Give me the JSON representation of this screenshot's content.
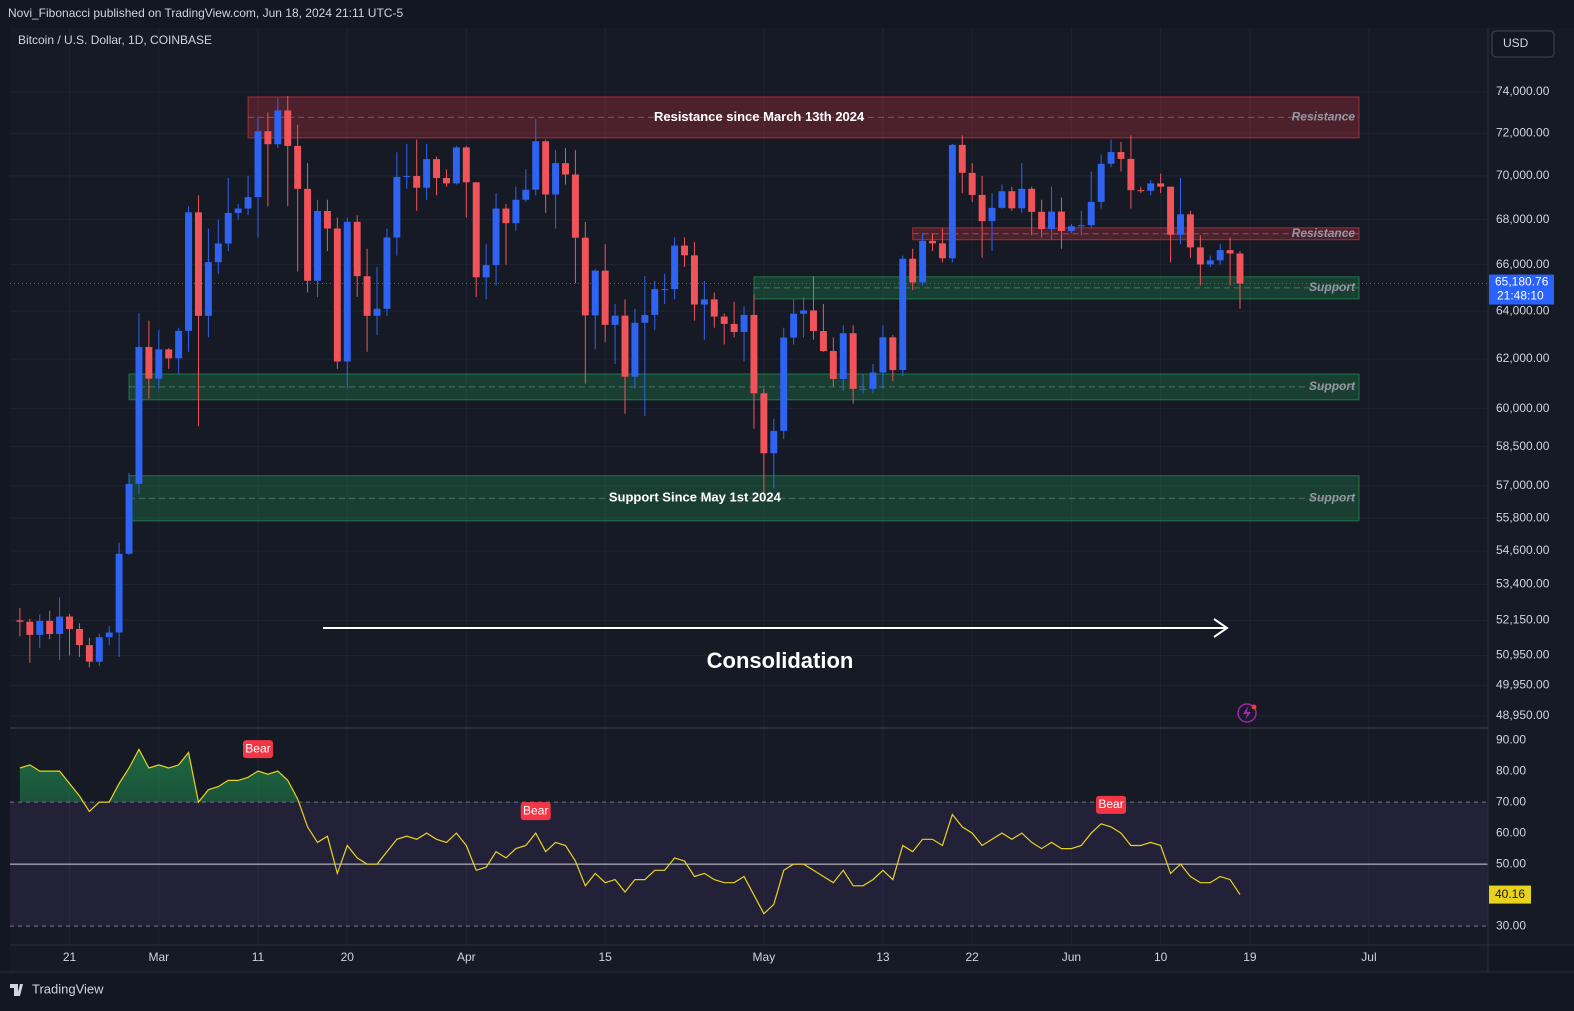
{
  "header": "Novi_Fibonacci published on TradingView.com, Jun 18, 2024 21:11 UTC-5",
  "footer": "TradingView",
  "chart_data": [
    {
      "type": "candlestick",
      "title": "Bitcoin / U.S. Dollar, 1D, COINBASE",
      "currency": "USD",
      "annotation": "Consolidation",
      "x": [
        "02-16",
        "02-17",
        "02-18",
        "02-19",
        "02-20",
        "02-21",
        "02-22",
        "02-23",
        "02-24",
        "02-25",
        "02-26",
        "02-27",
        "02-28",
        "02-29",
        "03-01",
        "03-02",
        "03-03",
        "03-04",
        "03-05",
        "03-06",
        "03-07",
        "03-08",
        "03-09",
        "03-10",
        "03-11",
        "03-12",
        "03-13",
        "03-14",
        "03-15",
        "03-16",
        "03-17",
        "03-18",
        "03-19",
        "03-20",
        "03-21",
        "03-22",
        "03-23",
        "03-24",
        "03-25",
        "03-26",
        "03-27",
        "03-28",
        "03-29",
        "03-30",
        "03-31",
        "04-01",
        "04-02",
        "04-03",
        "04-04",
        "04-05",
        "04-06",
        "04-07",
        "04-08",
        "04-09",
        "04-10",
        "04-11",
        "04-12",
        "04-13",
        "04-14",
        "04-15",
        "04-16",
        "04-17",
        "04-18",
        "04-19",
        "04-20",
        "04-21",
        "04-22",
        "04-23",
        "04-24",
        "04-25",
        "04-26",
        "04-27",
        "04-28",
        "04-29",
        "04-30",
        "05-01",
        "05-02",
        "05-03",
        "05-04",
        "05-05",
        "05-06",
        "05-07",
        "05-08",
        "05-09",
        "05-10",
        "05-11",
        "05-12",
        "05-13",
        "05-14",
        "05-15",
        "05-16",
        "05-17",
        "05-18",
        "05-19",
        "05-20",
        "05-21",
        "05-22",
        "05-23",
        "05-24",
        "05-25",
        "05-26",
        "05-27",
        "05-28",
        "05-29",
        "05-30",
        "05-31",
        "06-01",
        "06-02",
        "06-03",
        "06-04",
        "06-05",
        "06-06",
        "06-07",
        "06-08",
        "06-09",
        "06-10",
        "06-11",
        "06-12",
        "06-13",
        "06-14",
        "06-15",
        "06-16",
        "06-17",
        "06-18"
      ],
      "open": [
        52150,
        52100,
        51650,
        52130,
        51680,
        52280,
        51850,
        51300,
        50740,
        51570,
        51730,
        54500,
        57080,
        62500,
        61200,
        62400,
        62030,
        63170,
        68330,
        63800,
        66110,
        66930,
        68300,
        68500,
        69020,
        72100,
        71480,
        73100,
        71400,
        69400,
        65300,
        68390,
        67600,
        61900,
        67900,
        65500,
        63800,
        64100,
        67200,
        69950,
        69990,
        69450,
        70780,
        69900,
        69650,
        71330,
        69700,
        65450,
        65980,
        68500,
        67840,
        68900,
        69360,
        71620,
        69140,
        70590,
        70060,
        67190,
        63820,
        65740,
        63420,
        63810,
        61280,
        63510,
        63840,
        64940,
        64940,
        66840,
        66410,
        64280,
        64500,
        63770,
        63460,
        63120,
        63840,
        60610,
        58250,
        59120,
        62890,
        63890,
        64030,
        63160,
        62330,
        61190,
        63070,
        60790,
        60790,
        61450,
        62900,
        61550,
        66260,
        65230,
        67050,
        66940,
        66280,
        71450,
        70140,
        69120,
        67930,
        68530,
        69290,
        68510,
        69400,
        68350,
        67580,
        68360,
        67490,
        67700,
        67750,
        68800,
        70560,
        71110,
        70790,
        69340,
        69310,
        69650,
        69500,
        67320,
        68240,
        66760,
        66010,
        66190,
        66640,
        66490
      ],
      "high": [
        52580,
        52200,
        52350,
        52480,
        52950,
        52380,
        52050,
        51550,
        51700,
        51950,
        54900,
        57500,
        63900,
        63600,
        63200,
        62450,
        63300,
        68600,
        69100,
        67600,
        68000,
        69900,
        68700,
        70000,
        72800,
        73000,
        73700,
        73800,
        72400,
        70600,
        68900,
        68900,
        68100,
        68100,
        68200,
        66700,
        65900,
        67600,
        71100,
        71500,
        71700,
        71500,
        70900,
        70300,
        71400,
        71400,
        69700,
        66900,
        69200,
        68700,
        69500,
        70300,
        72700,
        71700,
        71200,
        71300,
        71200,
        67900,
        65800,
        66900,
        64300,
        64500,
        64100,
        65500,
        65300,
        65600,
        67200,
        67200,
        67000,
        65300,
        64800,
        63900,
        64400,
        64200,
        64700,
        60800,
        59600,
        63300,
        64500,
        64600,
        65500,
        64300,
        62900,
        63400,
        63400,
        61400,
        61800,
        63400,
        63000,
        66400,
        66700,
        67400,
        67400,
        67600,
        71500,
        71900,
        70600,
        70000,
        69200,
        69600,
        69500,
        70600,
        69500,
        68900,
        69500,
        69000,
        67800,
        68400,
        70200,
        71000,
        71700,
        71600,
        71900,
        69500,
        69800,
        70100,
        69500,
        69900,
        68400,
        67300,
        66400,
        66900,
        67200,
        66600
      ],
      "low": [
        51600,
        50700,
        51200,
        51500,
        50800,
        50950,
        50900,
        50550,
        50600,
        51300,
        50900,
        54450,
        56700,
        60400,
        60800,
        61600,
        61400,
        62300,
        59300,
        62900,
        65600,
        66600,
        68000,
        68200,
        67200,
        68600,
        71300,
        68600,
        65700,
        64800,
        64600,
        66600,
        61600,
        60800,
        64600,
        62300,
        63000,
        63800,
        66400,
        69400,
        68400,
        68900,
        69100,
        69500,
        69600,
        68100,
        64600,
        64500,
        65100,
        66000,
        67500,
        68800,
        69100,
        68300,
        67600,
        69600,
        65200,
        61000,
        62400,
        62700,
        61800,
        59800,
        60800,
        59700,
        63200,
        64300,
        64500,
        65900,
        63600,
        62800,
        63300,
        62600,
        62900,
        61900,
        59200,
        56600,
        56900,
        58800,
        62600,
        62900,
        62800,
        62300,
        60900,
        60700,
        60200,
        60600,
        60600,
        60800,
        61100,
        61300,
        64900,
        65100,
        66600,
        66100,
        66100,
        69200,
        68800,
        66300,
        66600,
        68500,
        68400,
        68300,
        67300,
        67200,
        67100,
        66700,
        67400,
        67300,
        67600,
        68500,
        70400,
        70200,
        68500,
        69200,
        69100,
        69200,
        66100,
        66900,
        66300,
        65100,
        65900,
        66000,
        65100,
        64100
      ],
      "close": [
        52100,
        51650,
        52130,
        51680,
        52280,
        51850,
        51300,
        50740,
        51570,
        51730,
        54500,
        57080,
        62500,
        61200,
        62400,
        62030,
        63170,
        68330,
        63800,
        66110,
        66930,
        68300,
        68500,
        69020,
        72100,
        71480,
        73100,
        71400,
        69400,
        65300,
        68390,
        67600,
        61900,
        67900,
        65500,
        63800,
        64100,
        67200,
        69950,
        69990,
        69450,
        70780,
        69900,
        69650,
        71330,
        69700,
        65450,
        65980,
        68500,
        67840,
        68900,
        69360,
        71620,
        69140,
        70590,
        70060,
        67190,
        63820,
        65740,
        63420,
        63810,
        61280,
        63510,
        63840,
        64940,
        64940,
        66840,
        66410,
        64280,
        64500,
        63770,
        63460,
        63120,
        63840,
        60610,
        58250,
        59120,
        62890,
        63890,
        64030,
        63160,
        62330,
        61190,
        63070,
        60790,
        60790,
        61450,
        62900,
        61550,
        66260,
        65230,
        67050,
        66940,
        66280,
        71450,
        70140,
        69120,
        67930,
        68530,
        69290,
        68510,
        69400,
        68350,
        67580,
        68360,
        67490,
        67700,
        67750,
        68800,
        70560,
        71110,
        70790,
        69340,
        69310,
        69650,
        69500,
        67320,
        68240,
        66760,
        66010,
        66190,
        66640,
        66490,
        65180.76
      ],
      "up_color": "#2f63f2",
      "down_color": "#f0545a",
      "last_price": {
        "value": 65180.76,
        "label": "65,180.76"
      },
      "countdown": "21:48:10",
      "log_scale": true,
      "grid": true,
      "ylim": [
        48560,
        77200
      ],
      "yticks": [
        {
          "value": 74000,
          "label": "74,000.00"
        },
        {
          "value": 72000,
          "label": "72,000.00"
        },
        {
          "value": 70000,
          "label": "70,000.00"
        },
        {
          "value": 68000,
          "label": "68,000.00"
        },
        {
          "value": 66000,
          "label": "66,000.00"
        },
        {
          "value": 64000,
          "label": "64,000.00"
        },
        {
          "value": 62000,
          "label": "62,000.00"
        },
        {
          "value": 60000,
          "label": "60,000.00"
        },
        {
          "value": 58500,
          "label": "58,500.00"
        },
        {
          "value": 57000,
          "label": "57,000.00"
        },
        {
          "value": 55800,
          "label": "55,800.00"
        },
        {
          "value": 54600,
          "label": "54,600.00"
        },
        {
          "value": 53400,
          "label": "53,400.00"
        },
        {
          "value": 52150,
          "label": "52,150.00"
        },
        {
          "value": 50950,
          "label": "50,950.00"
        },
        {
          "value": 49950,
          "label": "49,950.00"
        },
        {
          "value": 48950,
          "label": "48,950.00"
        }
      ],
      "xlim": [
        "02-15",
        "07-13"
      ],
      "xticks": [
        {
          "value": "02-21",
          "label": "21"
        },
        {
          "value": "03-01",
          "label": "Mar"
        },
        {
          "value": "03-11",
          "label": "11"
        },
        {
          "value": "03-20",
          "label": "20"
        },
        {
          "value": "04-01",
          "label": "Apr"
        },
        {
          "value": "04-15",
          "label": "15"
        },
        {
          "value": "05-01",
          "label": "May"
        },
        {
          "value": "05-13",
          "label": "13"
        },
        {
          "value": "05-22",
          "label": "22"
        },
        {
          "value": "06-01",
          "label": "Jun"
        },
        {
          "value": "06-10",
          "label": "10"
        },
        {
          "value": "06-19",
          "label": "19"
        },
        {
          "value": "07-01",
          "label": "Jul"
        }
      ],
      "zones": [
        {
          "top": 73755,
          "bottom": 71780,
          "x0": "03-10",
          "x1": "06-30",
          "color": "#f23645",
          "label": "Resistance since March 13th 2024",
          "side_label": "Resistance"
        },
        {
          "top": 67630,
          "bottom": 67100,
          "x0": "05-16",
          "x1": "06-30",
          "color": "#f23645",
          "side_label": "Resistance"
        },
        {
          "top": 65470,
          "bottom": 64520,
          "x0": "04-30",
          "x1": "06-30",
          "color": "#22ab5a",
          "side_label": "Support"
        },
        {
          "top": 61390,
          "bottom": 60350,
          "x0": "02-27",
          "x1": "06-30",
          "color": "#22ab5a",
          "side_label": "Support"
        },
        {
          "top": 57390,
          "bottom": 55700,
          "x0": "02-27",
          "x1": "06-30",
          "color": "#22ab5a",
          "label": "Support Since May 1st 2024",
          "side_label": "Support"
        }
      ]
    },
    {
      "type": "line",
      "color": "#e8d21d",
      "values": [
        81,
        82,
        80,
        80,
        80,
        76,
        72,
        67,
        70,
        70,
        76,
        81,
        87,
        81,
        82,
        81,
        82,
        86,
        70,
        74,
        75,
        77,
        77,
        78,
        80,
        79,
        80,
        77,
        71,
        62,
        57,
        59,
        47,
        56,
        52,
        50,
        50,
        54,
        58,
        59,
        58,
        60,
        58,
        57,
        60,
        56,
        48,
        49,
        54,
        52,
        55,
        56,
        60,
        54,
        57,
        56,
        51,
        43,
        47,
        44,
        45,
        41,
        45,
        45,
        48,
        48,
        52,
        51,
        46,
        47,
        45,
        44,
        44,
        46,
        40,
        34,
        37,
        48,
        50,
        50,
        48,
        46,
        44,
        48,
        43,
        43,
        45,
        48,
        45,
        56,
        54,
        58,
        58,
        56,
        66,
        62,
        60,
        56,
        58,
        60,
        58,
        60,
        57,
        55,
        57,
        55,
        55,
        56,
        60,
        63,
        62,
        60,
        56,
        56,
        57,
        56,
        47,
        50,
        46,
        44,
        44,
        46,
        45,
        40.16
      ],
      "levels": [
        70,
        50,
        30
      ],
      "ylim": [
        23.9,
        93.9
      ],
      "yticks": [
        {
          "value": 90,
          "label": "90.00"
        },
        {
          "value": 80,
          "label": "80.00"
        },
        {
          "value": 70,
          "label": "70.00"
        },
        {
          "value": 60,
          "label": "60.00"
        },
        {
          "value": 50,
          "label": "50.00"
        },
        {
          "value": 40,
          "label": "40.00"
        },
        {
          "value": 30,
          "label": "30.00"
        }
      ],
      "annotations": [
        {
          "x": "03-11",
          "text": "Bear"
        },
        {
          "x": "04-08",
          "text": "Bear"
        },
        {
          "x": "06-05",
          "text": "Bear"
        }
      ]
    }
  ]
}
